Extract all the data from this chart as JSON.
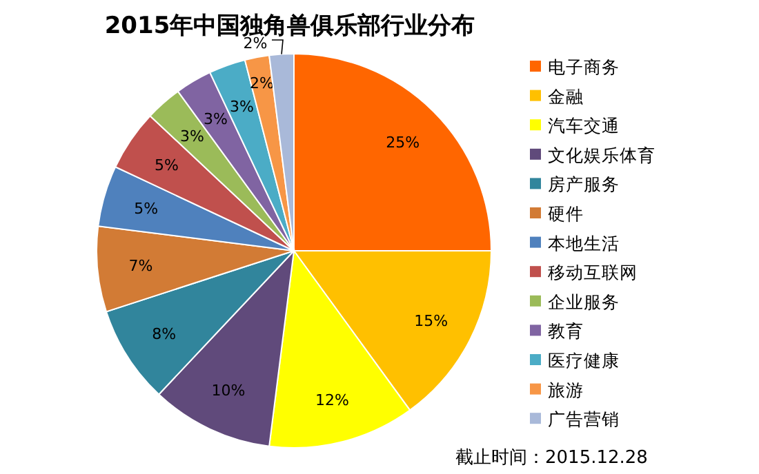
{
  "chart_data": {
    "type": "pie",
    "title": "2015年中国独角兽俱乐部行业分布",
    "categories": [
      "电子商务",
      "金融",
      "汽车交通",
      "文化娱乐体育",
      "房产服务",
      "硬件",
      "本地生活",
      "移动互联网",
      "企业服务",
      "教育",
      "医疗健康",
      "旅游",
      "广告营销"
    ],
    "values": [
      25,
      15,
      12,
      10,
      8,
      7,
      5,
      5,
      3,
      3,
      3,
      2,
      2
    ],
    "colors": [
      "#ff6600",
      "#ffc000",
      "#ffff00",
      "#604a7b",
      "#31859c",
      "#d27b35",
      "#4f81bd",
      "#c0504d",
      "#9bbb59",
      "#8064a2",
      "#4bacc6",
      "#f79646",
      "#a9b9d9"
    ],
    "value_labels": [
      "25%",
      "15%",
      "12%",
      "10%",
      "8%",
      "7%",
      "5%",
      "5%",
      "3%",
      "3%",
      "3%",
      "2%",
      "2%"
    ],
    "legend": "right",
    "annotations": [
      "截止时间：2015.12.28"
    ]
  }
}
